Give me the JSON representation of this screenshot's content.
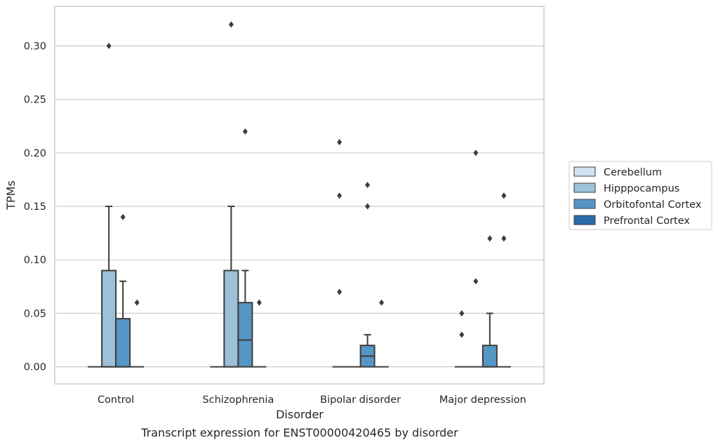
{
  "caption": "Transcript expression for ENST00000420465 by disorder",
  "chart_data": {
    "type": "box",
    "title": "",
    "xlabel": "Disorder",
    "ylabel": "TPMs",
    "ylim": [
      -0.016,
      0.337
    ],
    "yticks": [
      0.0,
      0.05,
      0.1,
      0.15,
      0.2,
      0.25,
      0.3
    ],
    "ytick_labels": [
      "0.00",
      "0.05",
      "0.10",
      "0.15",
      "0.20",
      "0.25",
      "0.30"
    ],
    "grid": true,
    "legend_position": "right",
    "categories": [
      "Control",
      "Schizophrenia",
      "Bipolar disorder",
      "Major depression"
    ],
    "series": [
      {
        "name": "Cerebellum",
        "color": "#d1e2f0",
        "boxes": [
          {
            "q1": 0,
            "median": 0,
            "q3": 0,
            "whisker_low": 0,
            "whisker_high": 0,
            "outliers": []
          },
          {
            "q1": 0,
            "median": 0,
            "q3": 0,
            "whisker_low": 0,
            "whisker_high": 0,
            "outliers": []
          },
          {
            "q1": 0,
            "median": 0,
            "q3": 0,
            "whisker_low": 0,
            "whisker_high": 0,
            "outliers": [
              0.07,
              0.16,
              0.21
            ]
          },
          {
            "q1": 0,
            "median": 0,
            "q3": 0,
            "whisker_low": 0,
            "whisker_high": 0,
            "outliers": [
              0.03,
              0.05
            ]
          }
        ]
      },
      {
        "name": "Hipppocampus",
        "color": "#9cc1d9",
        "boxes": [
          {
            "q1": 0,
            "median": 0,
            "q3": 0.09,
            "whisker_low": 0,
            "whisker_high": 0.15,
            "outliers": [
              0.3
            ]
          },
          {
            "q1": 0,
            "median": 0,
            "q3": 0.09,
            "whisker_low": 0,
            "whisker_high": 0.15,
            "outliers": [
              0.32
            ]
          },
          {
            "q1": 0,
            "median": 0,
            "q3": 0,
            "whisker_low": 0,
            "whisker_high": 0,
            "outliers": []
          },
          {
            "q1": 0,
            "median": 0,
            "q3": 0,
            "whisker_low": 0,
            "whisker_high": 0,
            "outliers": [
              0.08,
              0.2
            ]
          }
        ]
      },
      {
        "name": "Orbitofontal Cortex",
        "color": "#5696c4",
        "boxes": [
          {
            "q1": 0,
            "median": 0,
            "q3": 0.045,
            "whisker_low": 0,
            "whisker_high": 0.08,
            "outliers": [
              0.14
            ]
          },
          {
            "q1": 0,
            "median": 0.025,
            "q3": 0.06,
            "whisker_low": 0,
            "whisker_high": 0.09,
            "outliers": [
              0.22
            ]
          },
          {
            "q1": 0,
            "median": 0.01,
            "q3": 0.02,
            "whisker_low": 0,
            "whisker_high": 0.03,
            "outliers": [
              0.15,
              0.17
            ]
          },
          {
            "q1": 0,
            "median": 0,
            "q3": 0.02,
            "whisker_low": 0,
            "whisker_high": 0.05,
            "outliers": [
              0.12
            ]
          }
        ]
      },
      {
        "name": "Prefrontal Cortex",
        "color": "#2b6aa8",
        "boxes": [
          {
            "q1": 0,
            "median": 0,
            "q3": 0,
            "whisker_low": 0,
            "whisker_high": 0,
            "outliers": [
              0.06
            ]
          },
          {
            "q1": 0,
            "median": 0,
            "q3": 0,
            "whisker_low": 0,
            "whisker_high": 0,
            "outliers": [
              0.06
            ]
          },
          {
            "q1": 0,
            "median": 0,
            "q3": 0,
            "whisker_low": 0,
            "whisker_high": 0,
            "outliers": [
              0.06
            ]
          },
          {
            "q1": 0,
            "median": 0,
            "q3": 0,
            "whisker_low": 0,
            "whisker_high": 0,
            "outliers": [
              0.12,
              0.16
            ]
          }
        ]
      }
    ],
    "legend": [
      {
        "label": "Cerebellum",
        "color": "#d1e2f0"
      },
      {
        "label": "Hipppocampus",
        "color": "#9cc1d9"
      },
      {
        "label": "Orbitofontal Cortex",
        "color": "#5696c4"
      },
      {
        "label": "Prefrontal Cortex",
        "color": "#2b6aa8"
      }
    ]
  }
}
